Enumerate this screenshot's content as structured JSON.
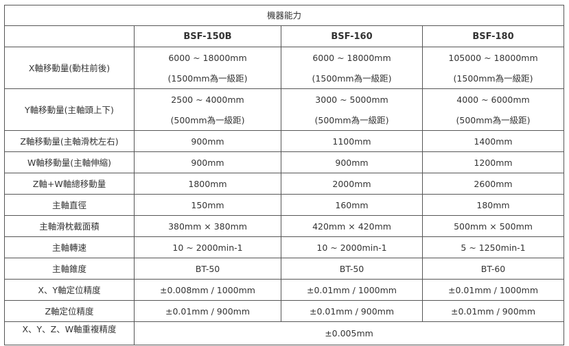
{
  "title": "機器能力",
  "models": [
    "BSF-150B",
    "BSF-160",
    "BSF-180"
  ],
  "rows": [
    {
      "label": "X軸移動量(動柱前後)",
      "values": [
        [
          "6000 ~  18000mm",
          "(1500mm為一級距)"
        ],
        [
          "6000 ~  18000mm",
          "(1500mm為一級距)"
        ],
        [
          "105000 ~  18000mm",
          "(1500mm為一級距)"
        ]
      ]
    },
    {
      "label": "Y軸移動量(主軸頭上下)",
      "values": [
        [
          "2500 ~ 4000mm",
          "(500mm為一級距)"
        ],
        [
          "3000 ~ 5000mm",
          "(500mm為一級距)"
        ],
        [
          "4000 ~ 6000mm",
          "(500mm為一級距)"
        ]
      ]
    },
    {
      "label": "Z軸移動量(主軸滑枕左右)",
      "values": [
        "900mm",
        "1100mm",
        "1400mm"
      ]
    },
    {
      "label": "W軸移動量(主軸伸縮)",
      "values": [
        "900mm",
        "900mm",
        "1200mm"
      ]
    },
    {
      "label": "Z軸+W軸總移動量",
      "values": [
        "1800mm",
        "2000mm",
        "2600mm"
      ]
    },
    {
      "label": "主軸直徑",
      "values": [
        "150mm",
        "160mm",
        "180mm"
      ]
    },
    {
      "label": "主軸滑枕截面積",
      "values": [
        "380mm × 380mm",
        "420mm × 420mm",
        "500mm × 500mm"
      ]
    },
    {
      "label": "主軸轉速",
      "values": [
        "10 ~ 2000min-1",
        "10 ~ 2000min-1",
        "5 ~ 1250min-1"
      ]
    },
    {
      "label": "主軸錐度",
      "values": [
        "BT-50",
        "BT-50",
        "BT-60"
      ]
    },
    {
      "label": "X、Y軸定位精度",
      "values": [
        "±0.008mm / 1000mm",
        "±0.01mm / 1000mm",
        "±0.01mm / 1000mm"
      ]
    },
    {
      "label": "Z軸定位精度",
      "values": [
        "±0.01mm / 900mm",
        "±0.01mm / 900mm",
        "±0.01mm / 900mm"
      ]
    }
  ],
  "last_row": {
    "label": "X、Y、Z、W軸重複精度",
    "value": "±0.005mm"
  }
}
